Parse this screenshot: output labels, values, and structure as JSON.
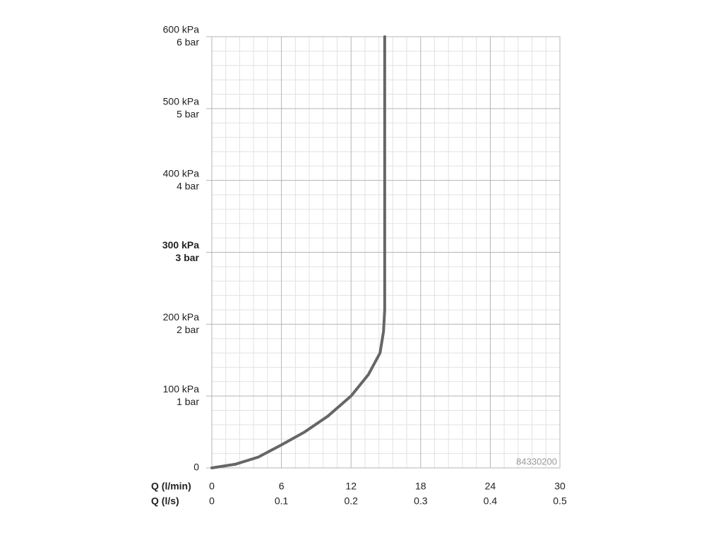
{
  "chart_data": {
    "type": "line",
    "x_axis_label": "Q (l/min)",
    "x2_axis_label": "Q (l/s)",
    "annotation": "84330200",
    "x": [
      0,
      2,
      4,
      6,
      8,
      10,
      12,
      13.5,
      14.5,
      14.8,
      14.9,
      14.9,
      14.9,
      14.9
    ],
    "series": [
      {
        "color": "#666666",
        "values": [
          0,
          5,
          15,
          32,
          50,
          72,
          100,
          130,
          160,
          190,
          220,
          300,
          450,
          600
        ]
      }
    ],
    "xlim": [
      0,
      30
    ],
    "xticks": [
      0,
      6,
      12,
      18,
      24,
      30
    ],
    "x2lim": [
      0,
      0.5
    ],
    "x2ticks": [
      0,
      0.1,
      0.2,
      0.3,
      0.4,
      0.5
    ],
    "ylim": [
      0,
      600
    ],
    "yticks": [
      0,
      {
        "value": 100,
        "label": "100 kPa"
      },
      {
        "value": 200,
        "label": "200 kPa"
      },
      {
        "value": 300,
        "label": "300 kPa"
      },
      {
        "value": 400,
        "label": "400 kPa"
      },
      {
        "value": 500,
        "label": "500 kPa"
      },
      {
        "value": 600,
        "label": "600 kPa"
      }
    ],
    "y2lim": [
      0,
      6
    ],
    "y2ticks": [
      {
        "value": 1,
        "label": "1 bar"
      },
      {
        "value": 2,
        "label": "2 bar"
      },
      {
        "value": 3,
        "label": "3 bar"
      },
      {
        "value": 4,
        "label": "4 bar"
      },
      {
        "value": 5,
        "label": "5 bar"
      },
      {
        "value": 6,
        "label": "6 bar"
      }
    ],
    "emphasized_ytick": 300,
    "grid": true,
    "minor_grid_divisions": 5
  }
}
